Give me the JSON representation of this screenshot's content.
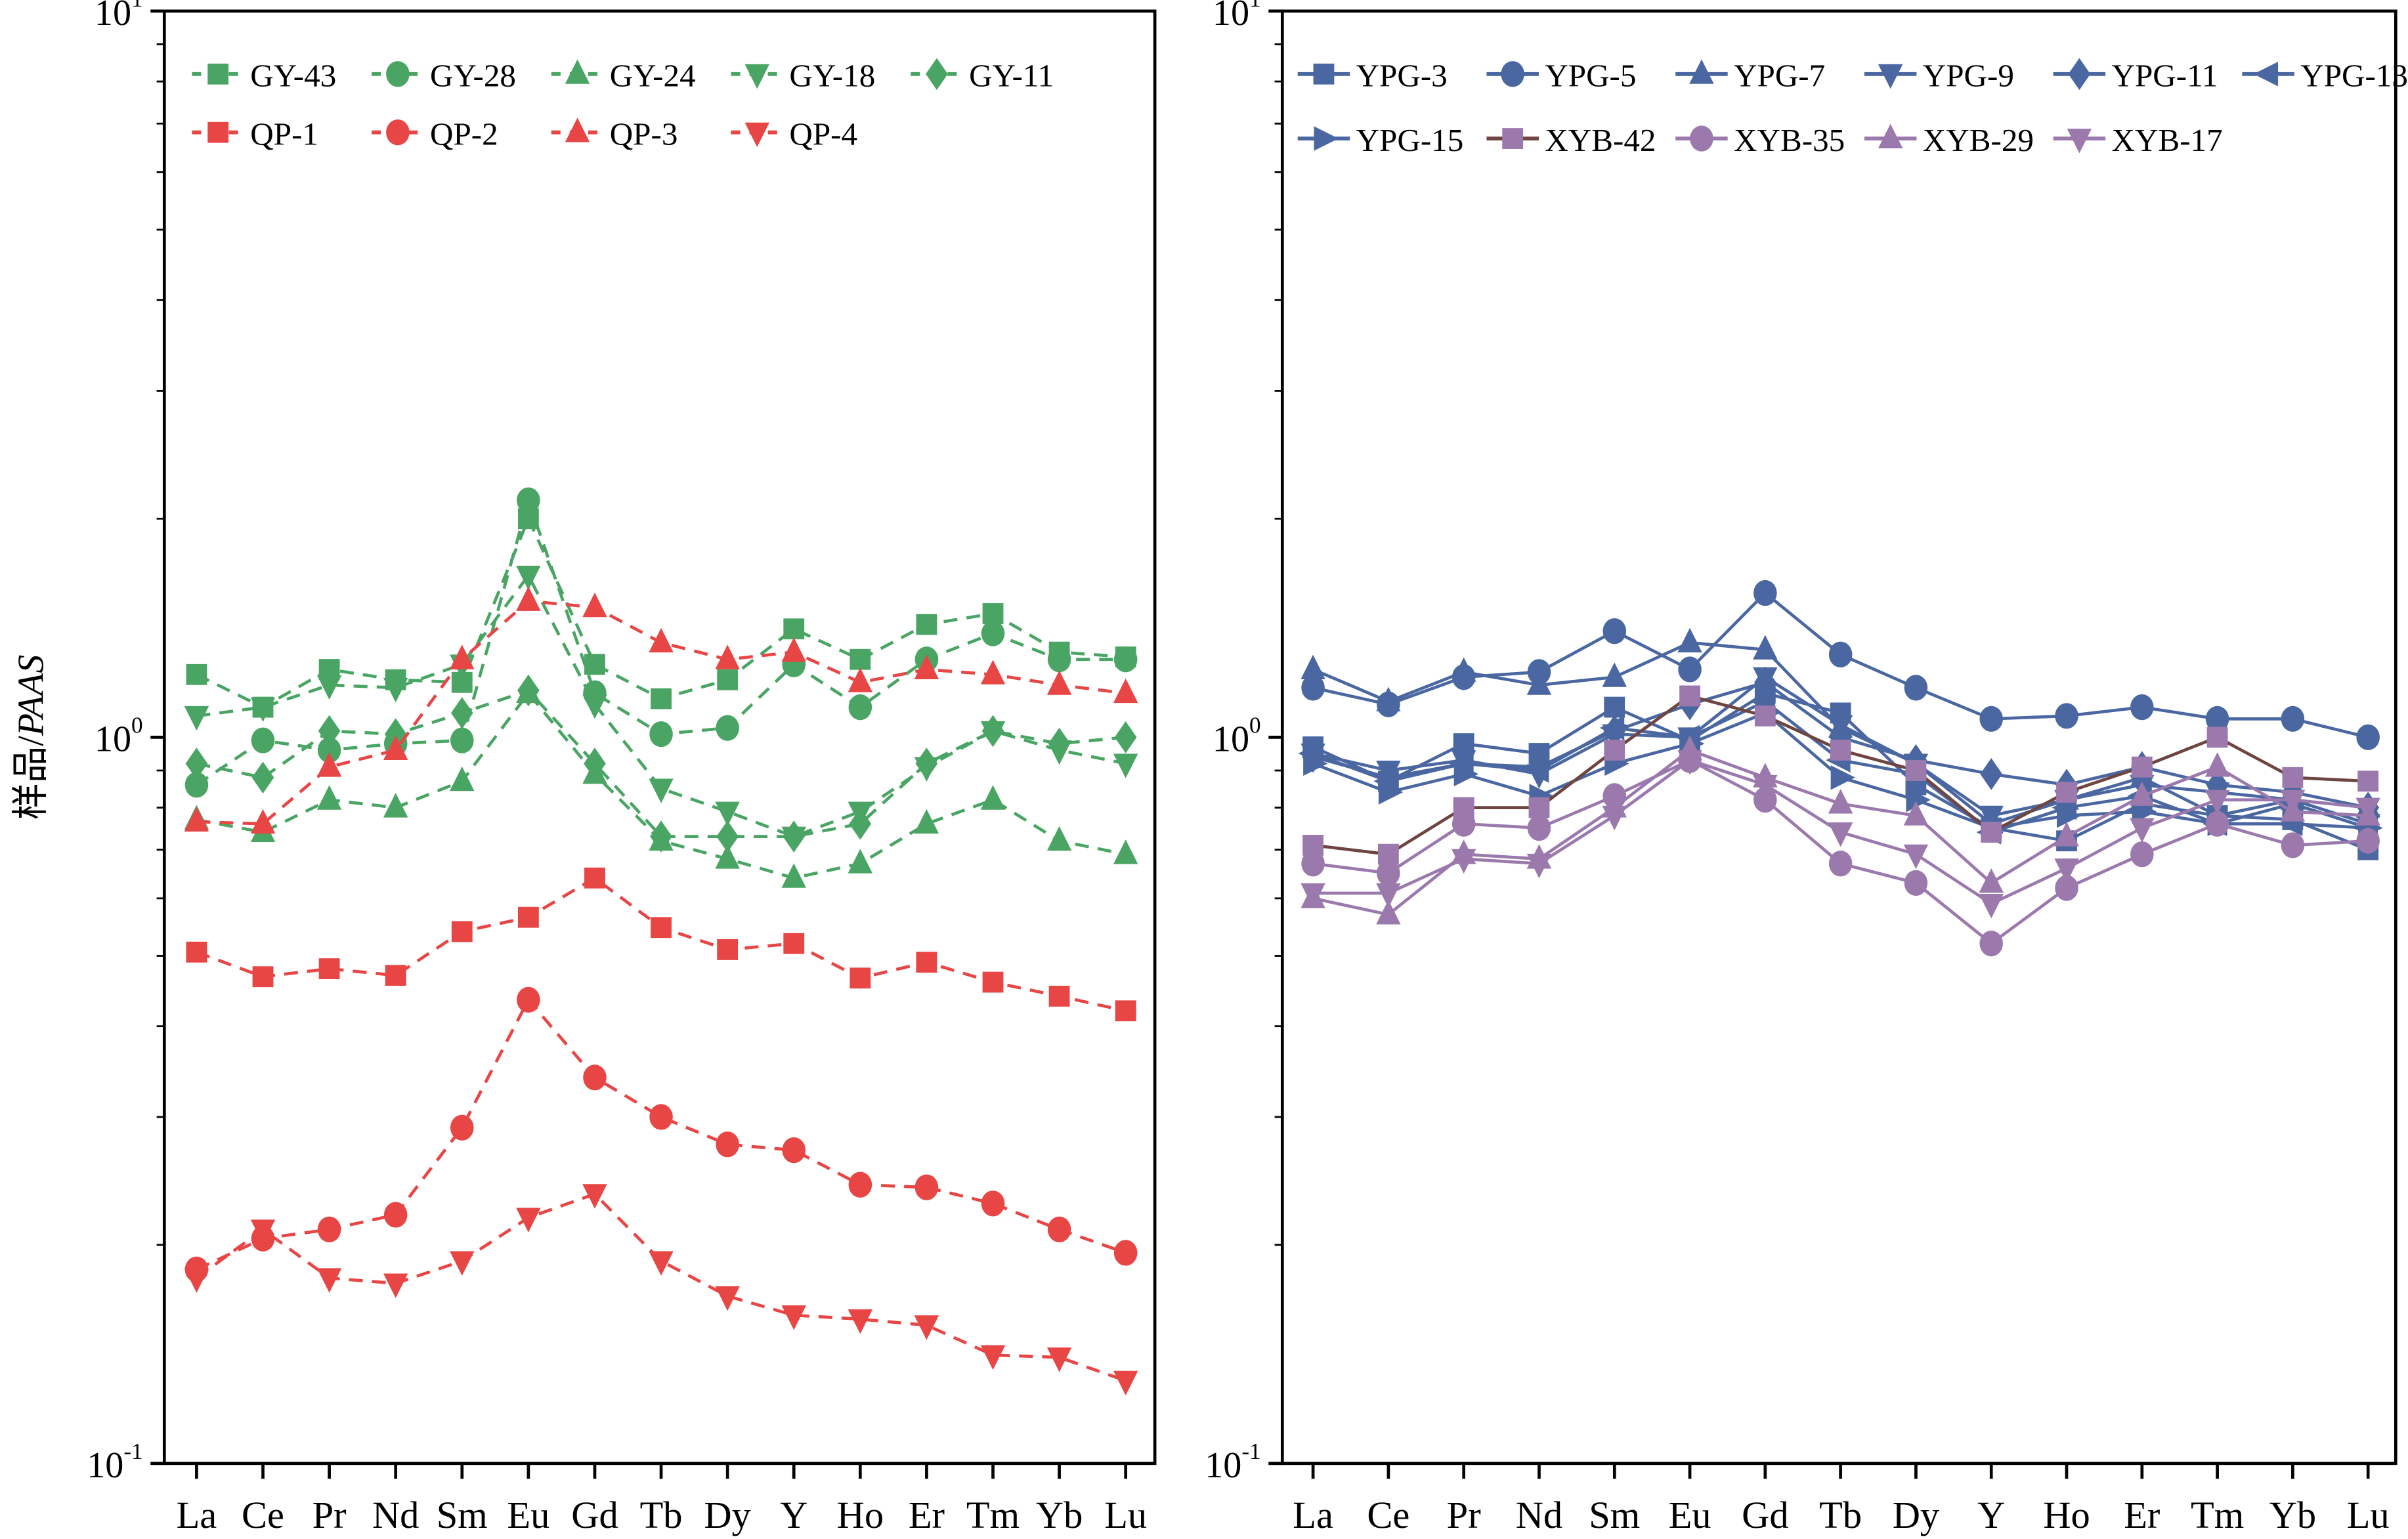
{
  "chart_data": [
    {
      "type": "line",
      "ylabel": "样品/PAAS",
      "yscale": "log",
      "ylim": [
        0.1,
        10
      ],
      "yticks": [
        "10^1",
        "10^0",
        "10^-1"
      ],
      "categories": [
        "La",
        "Ce",
        "Pr",
        "Nd",
        "Sm",
        "Eu",
        "Gd",
        "Tb",
        "Dy",
        "Y",
        "Ho",
        "Er",
        "Tm",
        "Yb",
        "Lu"
      ],
      "legend_placement": "top-left",
      "grid": false,
      "series": [
        {
          "name": "GY-43",
          "color": "#4aa564",
          "marker": "square",
          "dashed": true,
          "values": [
            1.22,
            1.1,
            1.24,
            1.2,
            1.19,
            2.0,
            1.26,
            1.13,
            1.2,
            1.41,
            1.28,
            1.43,
            1.48,
            1.31,
            1.29
          ]
        },
        {
          "name": "GY-28",
          "color": "#4aa564",
          "marker": "circle",
          "dashed": true,
          "values": [
            0.86,
            0.99,
            0.96,
            0.98,
            0.99,
            2.12,
            1.15,
            1.01,
            1.03,
            1.26,
            1.1,
            1.28,
            1.39,
            1.28,
            1.28
          ]
        },
        {
          "name": "GY-24",
          "color": "#4aa564",
          "marker": "triangle-up",
          "dashed": true,
          "values": [
            0.77,
            0.74,
            0.82,
            0.8,
            0.87,
            1.15,
            0.89,
            0.72,
            0.68,
            0.64,
            0.67,
            0.76,
            0.82,
            0.72,
            0.69
          ]
        },
        {
          "name": "GY-18",
          "color": "#4aa564",
          "marker": "triangle-down",
          "dashed": true,
          "values": [
            1.07,
            1.1,
            1.18,
            1.17,
            1.26,
            1.67,
            1.11,
            0.85,
            0.79,
            0.73,
            0.79,
            0.91,
            1.02,
            0.96,
            0.92
          ]
        },
        {
          "name": "GY-11",
          "color": "#4aa564",
          "marker": "diamond",
          "dashed": true,
          "values": [
            0.92,
            0.88,
            1.02,
            1.01,
            1.08,
            1.16,
            0.92,
            0.73,
            0.73,
            0.73,
            0.76,
            0.92,
            1.02,
            0.98,
            1.0
          ]
        },
        {
          "name": "QP-1",
          "color": "#e84545",
          "marker": "square",
          "dashed": true,
          "values": [
            0.506,
            0.468,
            0.48,
            0.47,
            0.54,
            0.565,
            0.64,
            0.547,
            0.51,
            0.52,
            0.466,
            0.49,
            0.46,
            0.44,
            0.42
          ]
        },
        {
          "name": "QP-2",
          "color": "#e84545",
          "marker": "circle",
          "dashed": true,
          "values": [
            0.185,
            0.204,
            0.21,
            0.22,
            0.29,
            0.435,
            0.34,
            0.3,
            0.275,
            0.27,
            0.242,
            0.24,
            0.228,
            0.21,
            0.195
          ]
        },
        {
          "name": "QP-3",
          "color": "#e84545",
          "marker": "triangle-up",
          "dashed": true,
          "values": [
            0.765,
            0.76,
            0.91,
            0.96,
            1.28,
            1.54,
            1.51,
            1.35,
            1.28,
            1.31,
            1.19,
            1.24,
            1.22,
            1.18,
            1.15
          ]
        },
        {
          "name": "QP-4",
          "color": "#e84545",
          "marker": "triangle-down",
          "dashed": true,
          "values": [
            0.18,
            0.21,
            0.18,
            0.177,
            0.19,
            0.218,
            0.235,
            0.19,
            0.17,
            0.16,
            0.158,
            0.155,
            0.141,
            0.14,
            0.13
          ]
        }
      ]
    },
    {
      "type": "line",
      "yscale": "log",
      "ylim": [
        0.1,
        10
      ],
      "yticks": [
        "10^1",
        "10^0",
        "10^-1"
      ],
      "categories": [
        "La",
        "Ce",
        "Pr",
        "Nd",
        "Sm",
        "Eu",
        "Gd",
        "Tb",
        "Dy",
        "Y",
        "Ho",
        "Er",
        "Tm",
        "Yb",
        "Lu"
      ],
      "legend_placement": "top-left",
      "grid": false,
      "series": [
        {
          "name": "YPG-3",
          "color": "#4a67a1",
          "marker": "square",
          "values": [
            0.97,
            0.87,
            0.98,
            0.95,
            1.1,
            0.99,
            1.15,
            1.08,
            0.86,
            0.75,
            0.72,
            0.81,
            0.78,
            0.77,
            0.7
          ]
        },
        {
          "name": "YPG-5",
          "color": "#4a67a1",
          "marker": "circle",
          "values": [
            1.17,
            1.11,
            1.21,
            1.23,
            1.4,
            1.24,
            1.58,
            1.3,
            1.17,
            1.06,
            1.07,
            1.1,
            1.06,
            1.06,
            1.0
          ]
        },
        {
          "name": "YPG-7",
          "color": "#4a67a1",
          "marker": "triangle-up",
          "values": [
            1.24,
            1.12,
            1.23,
            1.18,
            1.21,
            1.35,
            1.32,
            1.03,
            0.92,
            0.76,
            0.82,
            0.88,
            0.78,
            0.82,
            0.8
          ]
        },
        {
          "name": "YPG-9",
          "color": "#4a67a1",
          "marker": "triangle-down",
          "values": [
            0.95,
            0.9,
            0.93,
            0.89,
            1.01,
            1.0,
            1.21,
            1.04,
            0.92,
            0.78,
            0.82,
            0.86,
            0.84,
            0.82,
            0.76
          ]
        },
        {
          "name": "YPG-11",
          "color": "#4a67a1",
          "marker": "diamond",
          "values": [
            0.94,
            0.88,
            0.92,
            0.91,
            1.02,
            1.11,
            1.19,
            1.0,
            0.93,
            0.89,
            0.86,
            0.91,
            0.86,
            0.84,
            0.8
          ]
        },
        {
          "name": "YPG-13",
          "color": "#4a67a1",
          "marker": "triangle-left",
          "values": [
            0.95,
            0.87,
            0.92,
            0.9,
            1.03,
            1.0,
            1.12,
            0.93,
            0.89,
            0.74,
            0.8,
            0.83,
            0.76,
            0.76,
            0.75
          ]
        },
        {
          "name": "YPG-15",
          "color": "#4a67a1",
          "marker": "triangle-right",
          "values": [
            0.92,
            0.84,
            0.89,
            0.83,
            0.92,
            0.98,
            1.08,
            0.88,
            0.82,
            0.75,
            0.78,
            0.79,
            0.76,
            0.81,
            0.75
          ]
        },
        {
          "name": "XYB-42",
          "color": "#9b79ad",
          "line_color": "#6e4540",
          "marker": "square",
          "values": [
            0.71,
            0.69,
            0.8,
            0.8,
            0.96,
            1.14,
            1.07,
            0.96,
            0.9,
            0.74,
            0.84,
            0.91,
            1.0,
            0.88,
            0.87
          ]
        },
        {
          "name": "XYB-35",
          "color": "#9b79ad",
          "marker": "circle",
          "values": [
            0.67,
            0.65,
            0.76,
            0.75,
            0.83,
            0.93,
            0.82,
            0.67,
            0.63,
            0.52,
            0.62,
            0.69,
            0.76,
            0.71,
            0.72
          ]
        },
        {
          "name": "XYB-29",
          "color": "#9b79ad",
          "marker": "triangle-up",
          "values": [
            0.6,
            0.57,
            0.69,
            0.68,
            0.8,
            0.96,
            0.88,
            0.81,
            0.78,
            0.63,
            0.73,
            0.83,
            0.91,
            0.79,
            0.78
          ]
        },
        {
          "name": "XYB-17",
          "color": "#9b79ad",
          "marker": "triangle-down",
          "values": [
            0.61,
            0.61,
            0.68,
            0.67,
            0.78,
            0.93,
            0.86,
            0.74,
            0.69,
            0.59,
            0.66,
            0.75,
            0.82,
            0.82,
            0.8
          ]
        }
      ]
    }
  ]
}
